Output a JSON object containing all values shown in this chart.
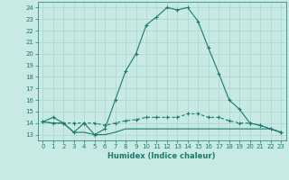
{
  "xlabel": "Humidex (Indice chaleur)",
  "ylabel": "",
  "bg_color": "#c8eae4",
  "line_color": "#1a7a6e",
  "grid_color": "#b0d8d0",
  "xlim": [
    -0.5,
    23.5
  ],
  "ylim": [
    12.5,
    24.5
  ],
  "yticks": [
    13,
    14,
    15,
    16,
    17,
    18,
    19,
    20,
    21,
    22,
    23,
    24
  ],
  "xticks": [
    0,
    1,
    2,
    3,
    4,
    5,
    6,
    7,
    8,
    9,
    10,
    11,
    12,
    13,
    14,
    15,
    16,
    17,
    18,
    19,
    20,
    21,
    22,
    23
  ],
  "line1_x": [
    0,
    1,
    2,
    3,
    4,
    5,
    6,
    7,
    8,
    9,
    10,
    11,
    12,
    13,
    14,
    15,
    16,
    17,
    18,
    19,
    20,
    21,
    22,
    23
  ],
  "line1_y": [
    14.1,
    14.5,
    14.0,
    13.2,
    14.0,
    13.0,
    13.5,
    16.0,
    18.5,
    20.0,
    22.5,
    23.2,
    24.0,
    23.8,
    24.0,
    22.8,
    20.5,
    18.3,
    16.0,
    15.2,
    14.0,
    13.8,
    13.5,
    13.2
  ],
  "line2_x": [
    0,
    1,
    2,
    3,
    4,
    5,
    6,
    7,
    8,
    9,
    10,
    11,
    12,
    13,
    14,
    15,
    16,
    17,
    18,
    19,
    20,
    21,
    22,
    23
  ],
  "line2_y": [
    14.1,
    14.0,
    14.0,
    14.0,
    14.0,
    14.0,
    13.8,
    14.0,
    14.2,
    14.3,
    14.5,
    14.5,
    14.5,
    14.5,
    14.8,
    14.8,
    14.5,
    14.5,
    14.2,
    14.0,
    14.0,
    13.8,
    13.5,
    13.2
  ],
  "line3_x": [
    0,
    1,
    2,
    3,
    4,
    5,
    6,
    7,
    8,
    9,
    10,
    11,
    12,
    13,
    14,
    15,
    16,
    17,
    18,
    19,
    20,
    21,
    22,
    23
  ],
  "line3_y": [
    14.1,
    14.0,
    14.0,
    13.2,
    13.2,
    13.0,
    13.0,
    13.2,
    13.5,
    13.5,
    13.5,
    13.5,
    13.5,
    13.5,
    13.5,
    13.5,
    13.5,
    13.5,
    13.5,
    13.5,
    13.5,
    13.5,
    13.5,
    13.2
  ],
  "tick_fontsize": 5.0,
  "xlabel_fontsize": 6.0
}
